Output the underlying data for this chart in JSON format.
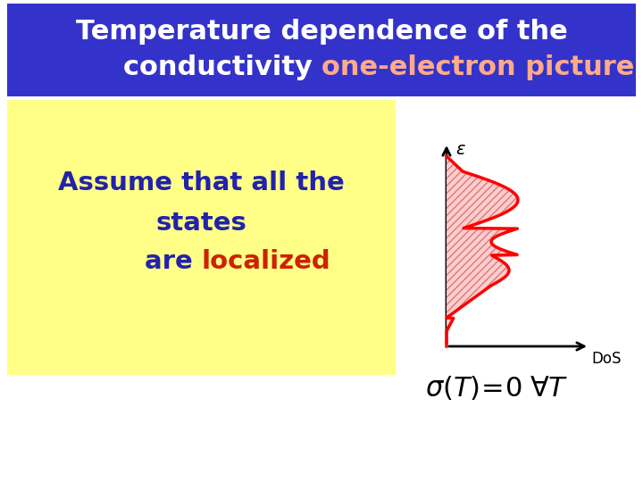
{
  "title_line1": "Temperature dependence of the",
  "title_line2_normal": "conductivity ",
  "title_line2_colored": "one-electron picture",
  "title_bg_color": "#3333cc",
  "title_text_color": "#ffffff",
  "title_colored_text_color": "#ffaa88",
  "yellow_box_color": "#ffff88",
  "left_text_line1": "Assume that all the",
  "left_text_line2": "states",
  "left_text_line3_normal": "are ",
  "left_text_line3_colored": "localized",
  "left_text_color": "#2222aa",
  "left_text_colored_color": "#cc2200",
  "dos_label": "DoS",
  "epsilon_label": "$\\epsilon$",
  "bg_color": "#ffffff",
  "fig_width": 7.2,
  "fig_height": 5.4,
  "dpi": 100
}
